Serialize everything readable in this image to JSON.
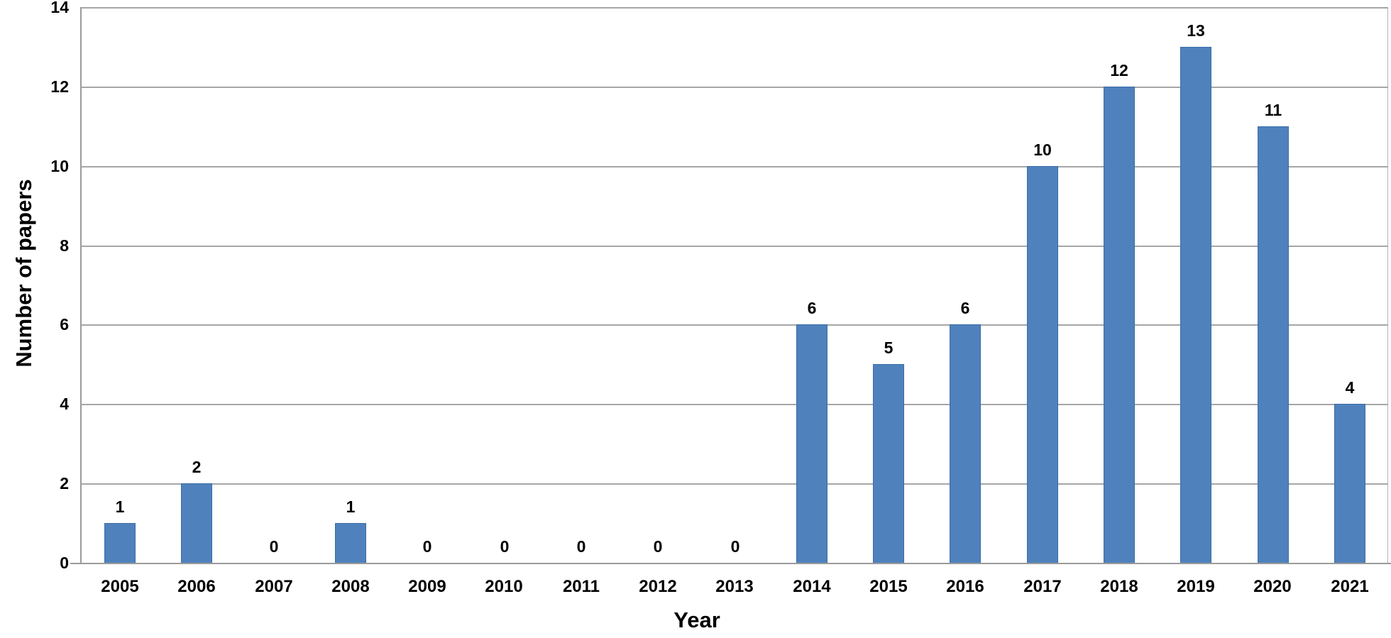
{
  "chart_data": {
    "type": "bar",
    "title": "",
    "xlabel": "Year",
    "ylabel": "Number of papers",
    "categories": [
      "2005",
      "2006",
      "2007",
      "2008",
      "2009",
      "2010",
      "2011",
      "2012",
      "2013",
      "2014",
      "2015",
      "2016",
      "2017",
      "2018",
      "2019",
      "2020",
      "2021"
    ],
    "values": [
      1,
      2,
      0,
      1,
      0,
      0,
      0,
      0,
      0,
      6,
      5,
      6,
      10,
      12,
      13,
      11,
      4
    ],
    "data_labels_shown": true,
    "ylim": [
      0,
      14
    ],
    "yticks": [
      0,
      2,
      4,
      6,
      8,
      10,
      12,
      14
    ],
    "grid": "horizontal",
    "legend": "none",
    "colors": {
      "bar_fill": "#4f81bd",
      "bar_border": "#3d6da6",
      "gridline": "#a6a6a6",
      "axis_line": "#9b9b9b",
      "plot_border_right": "#b3b3b3",
      "text": "#000000",
      "background": "#ffffff"
    }
  }
}
